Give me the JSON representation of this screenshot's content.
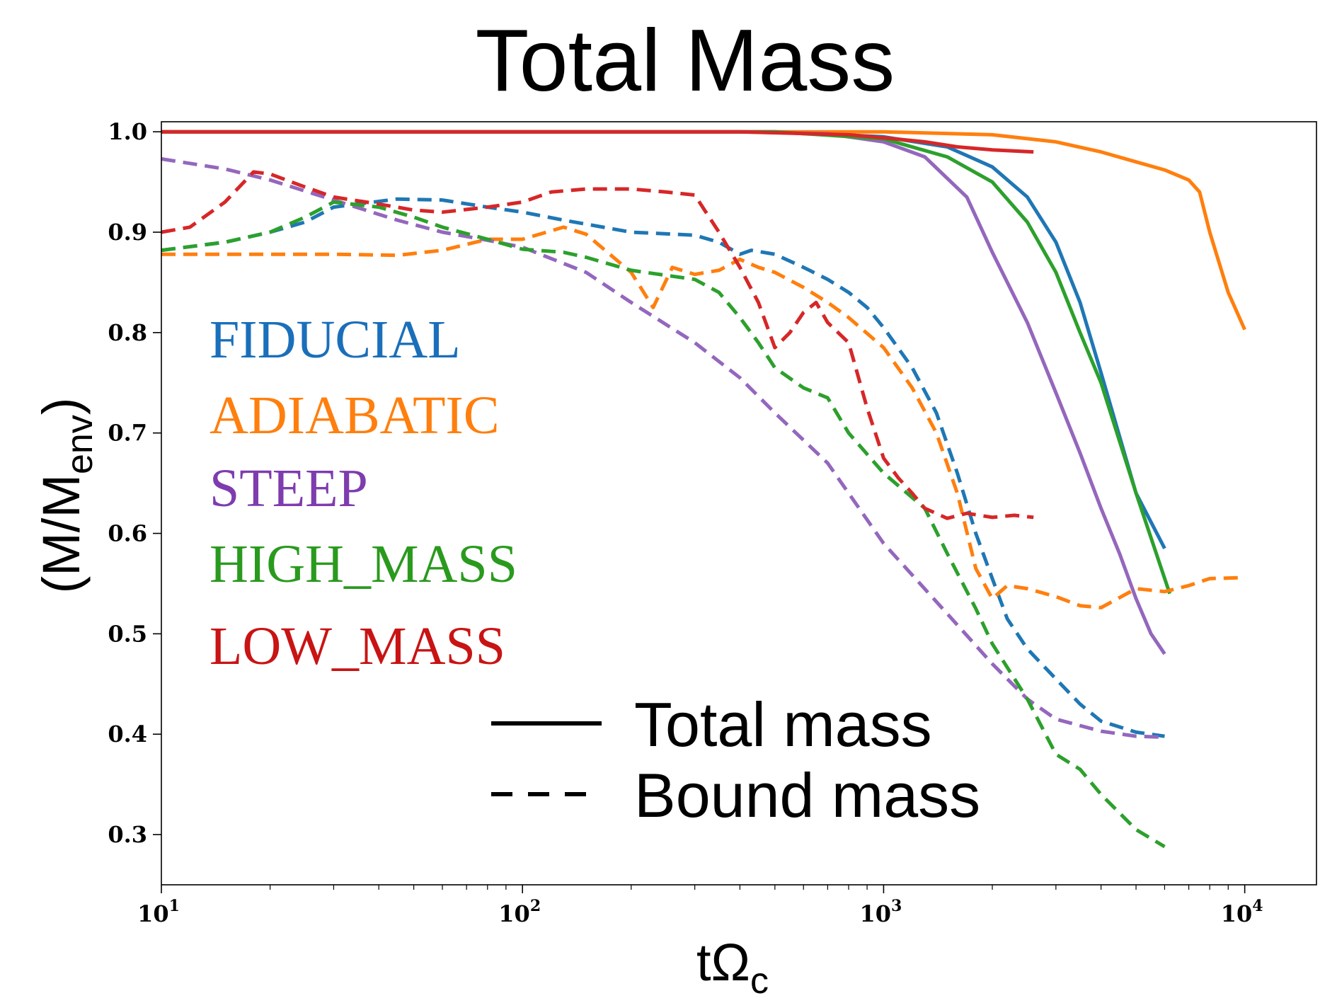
{
  "chart_data": {
    "type": "line",
    "title": "Total Mass",
    "xlabel": {
      "main": "tΩ",
      "sub": "c"
    },
    "ylabel": {
      "main": "(M/M",
      "sub": "env",
      "close": ")"
    },
    "xscale": "log",
    "xlim": [
      10,
      15800
    ],
    "ylim": [
      0.25,
      1.01
    ],
    "yticks": [
      "1.0",
      "0.9",
      "0.8",
      "0.7",
      "0.6",
      "0.5",
      "0.4",
      "0.3"
    ],
    "ytick_values": [
      1.0,
      0.9,
      0.8,
      0.7,
      0.6,
      0.5,
      0.4,
      0.3
    ],
    "xticks": [
      {
        "value": 10,
        "base": "10",
        "exp": "1"
      },
      {
        "value": 100,
        "base": "10",
        "exp": "2"
      },
      {
        "value": 1000,
        "base": "10",
        "exp": "3"
      },
      {
        "value": 10000,
        "base": "10",
        "exp": "4"
      }
    ],
    "grid": false,
    "models": [
      {
        "name": "FIDUCIAL",
        "color": "#1f77b4",
        "label_color": "#1a6fba"
      },
      {
        "name": "ADIABATIC",
        "color": "#ff7f0e",
        "label_color": "#ff7f0e"
      },
      {
        "name": "STEEP",
        "color": "#9467bd",
        "label_color": "#7e3cae"
      },
      {
        "name": "HIGH_MASS",
        "color": "#2ca02c",
        "label_color": "#2a9a1e"
      },
      {
        "name": "LOW_MASS",
        "color": "#d62728",
        "label_color": "#c81414"
      }
    ],
    "style_legend": [
      {
        "label": "Total mass",
        "dash": "solid"
      },
      {
        "label": "Bound mass",
        "dash": "dashed"
      }
    ],
    "series": [
      {
        "name": "FIDUCIAL",
        "kind": "Total mass",
        "color": "#1f77b4",
        "dash": "solid",
        "x": [
          10,
          100,
          500,
          1000,
          1500,
          2000,
          2500,
          3000,
          3500,
          4000,
          5000,
          6000
        ],
        "y": [
          1.0,
          1.0,
          1.0,
          0.995,
          0.985,
          0.965,
          0.935,
          0.89,
          0.83,
          0.76,
          0.64,
          0.585
        ]
      },
      {
        "name": "ADIABATIC",
        "kind": "Total mass",
        "color": "#ff7f0e",
        "dash": "solid",
        "x": [
          10,
          100,
          1000,
          2000,
          3000,
          4000,
          5000,
          6000,
          7000,
          7500,
          8000,
          9000,
          10000
        ],
        "y": [
          1.0,
          1.0,
          1.0,
          0.997,
          0.99,
          0.98,
          0.97,
          0.962,
          0.952,
          0.94,
          0.9,
          0.84,
          0.803
        ]
      },
      {
        "name": "STEEP",
        "kind": "Total mass",
        "color": "#9467bd",
        "dash": "solid",
        "x": [
          10,
          100,
          400,
          700,
          1000,
          1300,
          1700,
          2000,
          2500,
          3000,
          3500,
          4000,
          4500,
          5000,
          5500,
          6000
        ],
        "y": [
          1.0,
          1.0,
          1.0,
          0.998,
          0.99,
          0.975,
          0.935,
          0.88,
          0.81,
          0.74,
          0.68,
          0.625,
          0.58,
          0.535,
          0.5,
          0.48
        ]
      },
      {
        "name": "HIGH_MASS",
        "kind": "Total mass",
        "color": "#2ca02c",
        "dash": "solid",
        "x": [
          10,
          100,
          500,
          1000,
          1500,
          2000,
          2500,
          3000,
          3500,
          4000,
          5000,
          6200
        ],
        "y": [
          1.0,
          1.0,
          1.0,
          0.993,
          0.975,
          0.95,
          0.91,
          0.86,
          0.8,
          0.75,
          0.64,
          0.54
        ]
      },
      {
        "name": "LOW_MASS",
        "kind": "Total mass",
        "color": "#d62728",
        "dash": "solid",
        "x": [
          10,
          100,
          400,
          800,
          1000,
          1300,
          1600,
          2000,
          2600
        ],
        "y": [
          1.0,
          1.0,
          1.0,
          0.997,
          0.994,
          0.99,
          0.985,
          0.982,
          0.98
        ]
      },
      {
        "name": "FIDUCIAL",
        "kind": "Bound mass",
        "color": "#1f77b4",
        "dash": "dashed",
        "x": [
          10,
          15,
          20,
          25,
          30,
          45,
          60,
          80,
          100,
          130,
          200,
          300,
          350,
          400,
          430,
          500,
          600,
          700,
          800,
          900,
          1000,
          1200,
          1400,
          1600,
          1800,
          2000,
          2200,
          2500,
          3000,
          3500,
          4000,
          5000,
          6000
        ],
        "y": [
          0.882,
          0.89,
          0.9,
          0.91,
          0.925,
          0.933,
          0.932,
          0.925,
          0.92,
          0.912,
          0.9,
          0.897,
          0.89,
          0.878,
          0.882,
          0.878,
          0.865,
          0.853,
          0.84,
          0.825,
          0.805,
          0.765,
          0.72,
          0.66,
          0.6,
          0.555,
          0.515,
          0.485,
          0.455,
          0.43,
          0.413,
          0.402,
          0.398
        ]
      },
      {
        "name": "ADIABATIC",
        "kind": "Bound mass",
        "color": "#ff7f0e",
        "dash": "dashed",
        "x": [
          10,
          20,
          30,
          45,
          60,
          80,
          100,
          130,
          150,
          200,
          230,
          260,
          300,
          350,
          400,
          450,
          500,
          600,
          700,
          800,
          1000,
          1200,
          1400,
          1600,
          1800,
          2000,
          2200,
          2500,
          3000,
          3500,
          4000,
          5000,
          6000,
          7000,
          8000,
          10000
        ],
        "y": [
          0.878,
          0.878,
          0.878,
          0.877,
          0.882,
          0.893,
          0.893,
          0.905,
          0.898,
          0.86,
          0.825,
          0.865,
          0.858,
          0.862,
          0.873,
          0.865,
          0.86,
          0.845,
          0.83,
          0.815,
          0.785,
          0.745,
          0.7,
          0.64,
          0.565,
          0.535,
          0.548,
          0.545,
          0.537,
          0.528,
          0.526,
          0.545,
          0.542,
          0.548,
          0.555,
          0.556
        ]
      },
      {
        "name": "STEEP",
        "kind": "Bound mass",
        "color": "#9467bd",
        "dash": "dashed",
        "x": [
          10,
          15,
          20,
          30,
          45,
          60,
          80,
          100,
          150,
          200,
          300,
          400,
          500,
          700,
          1000,
          1500,
          2000,
          2500,
          3000,
          4000,
          5000,
          6000
        ],
        "y": [
          0.973,
          0.963,
          0.952,
          0.932,
          0.912,
          0.9,
          0.892,
          0.885,
          0.86,
          0.83,
          0.79,
          0.755,
          0.72,
          0.67,
          0.59,
          0.52,
          0.47,
          0.435,
          0.415,
          0.403,
          0.398,
          0.397
        ]
      },
      {
        "name": "HIGH_MASS",
        "kind": "Bound mass",
        "color": "#2ca02c",
        "dash": "dashed",
        "x": [
          10,
          15,
          20,
          25,
          30,
          40,
          50,
          60,
          80,
          100,
          130,
          150,
          200,
          250,
          300,
          350,
          400,
          450,
          500,
          600,
          700,
          800,
          1000,
          1300,
          1500,
          1800,
          2000,
          2500,
          3000,
          3500,
          4000,
          5000,
          6000
        ],
        "y": [
          0.882,
          0.89,
          0.9,
          0.915,
          0.93,
          0.925,
          0.915,
          0.905,
          0.893,
          0.883,
          0.88,
          0.875,
          0.862,
          0.857,
          0.853,
          0.84,
          0.815,
          0.79,
          0.765,
          0.745,
          0.735,
          0.7,
          0.66,
          0.625,
          0.58,
          0.525,
          0.49,
          0.435,
          0.38,
          0.365,
          0.34,
          0.305,
          0.288
        ]
      },
      {
        "name": "LOW_MASS",
        "kind": "Bound mass",
        "color": "#d62728",
        "dash": "dashed",
        "x": [
          10,
          12,
          15,
          18,
          20,
          25,
          30,
          40,
          50,
          60,
          80,
          100,
          120,
          150,
          200,
          250,
          300,
          350,
          400,
          450,
          500,
          550,
          600,
          650,
          700,
          800,
          900,
          1000,
          1100,
          1200,
          1300,
          1500,
          1700,
          2000,
          2300,
          2600
        ],
        "y": [
          0.9,
          0.905,
          0.93,
          0.96,
          0.958,
          0.945,
          0.935,
          0.928,
          0.922,
          0.92,
          0.925,
          0.93,
          0.94,
          0.943,
          0.943,
          0.94,
          0.937,
          0.9,
          0.865,
          0.83,
          0.785,
          0.8,
          0.82,
          0.83,
          0.81,
          0.79,
          0.725,
          0.675,
          0.655,
          0.64,
          0.625,
          0.615,
          0.62,
          0.616,
          0.618,
          0.616
        ]
      }
    ]
  }
}
